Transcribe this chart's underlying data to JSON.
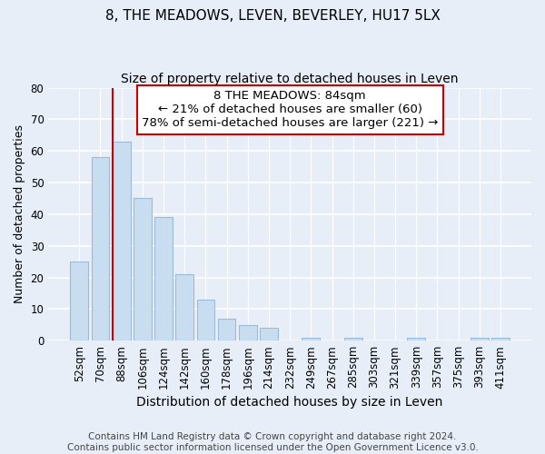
{
  "title": "8, THE MEADOWS, LEVEN, BEVERLEY, HU17 5LX",
  "subtitle": "Size of property relative to detached houses in Leven",
  "xlabel": "Distribution of detached houses by size in Leven",
  "ylabel": "Number of detached properties",
  "bar_labels": [
    "52sqm",
    "70sqm",
    "88sqm",
    "106sqm",
    "124sqm",
    "142sqm",
    "160sqm",
    "178sqm",
    "196sqm",
    "214sqm",
    "232sqm",
    "249sqm",
    "267sqm",
    "285sqm",
    "303sqm",
    "321sqm",
    "339sqm",
    "357sqm",
    "375sqm",
    "393sqm",
    "411sqm"
  ],
  "bar_values": [
    25,
    58,
    63,
    45,
    39,
    21,
    13,
    7,
    5,
    4,
    0,
    1,
    0,
    1,
    0,
    0,
    1,
    0,
    0,
    1,
    1
  ],
  "bar_color": "#c9ddf0",
  "bar_edge_color": "#9bbbd8",
  "highlight_line_color": "#cc0000",
  "ylim": [
    0,
    80
  ],
  "yticks": [
    0,
    10,
    20,
    30,
    40,
    50,
    60,
    70,
    80
  ],
  "annotation_title": "8 THE MEADOWS: 84sqm",
  "annotation_line1": "← 21% of detached houses are smaller (60)",
  "annotation_line2": "78% of semi-detached houses are larger (221) →",
  "annotation_box_facecolor": "#ffffff",
  "annotation_box_edgecolor": "#cc0000",
  "footer_line1": "Contains HM Land Registry data © Crown copyright and database right 2024.",
  "footer_line2": "Contains public sector information licensed under the Open Government Licence v3.0.",
  "fig_facecolor": "#e8eef8",
  "plot_facecolor": "#e8eef8",
  "grid_color": "#ffffff",
  "title_fontsize": 11,
  "subtitle_fontsize": 10,
  "xlabel_fontsize": 10,
  "ylabel_fontsize": 9,
  "tick_fontsize": 8.5,
  "footer_fontsize": 7.5,
  "annotation_fontsize": 9.5
}
